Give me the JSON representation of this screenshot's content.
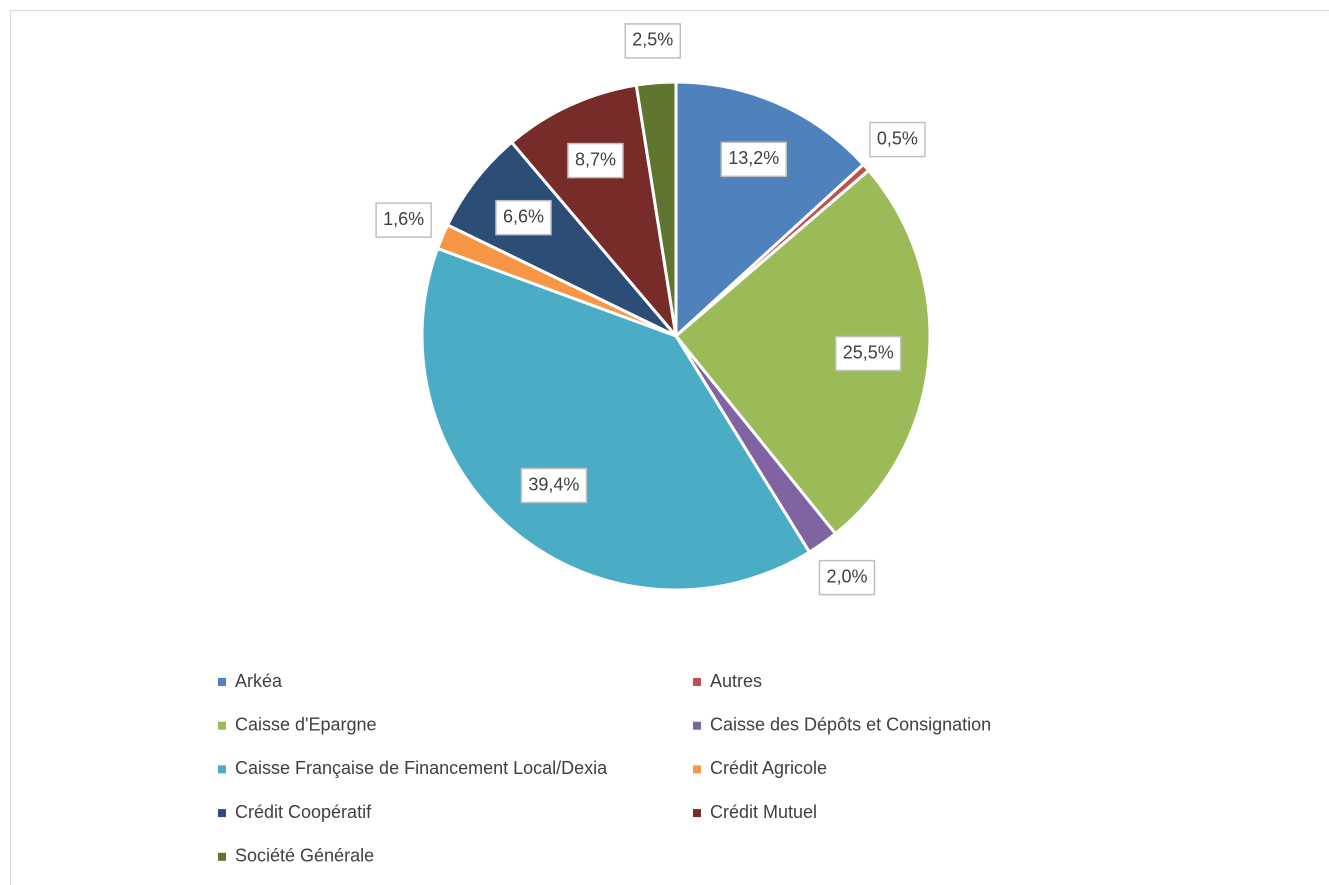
{
  "chart_data": {
    "type": "pie",
    "categories": [
      "Arkéa",
      "Autres",
      "Caisse d'Epargne",
      "Caisse des Dépôts et Consignation",
      "Caisse Française de Financement Local/Dexia",
      "Crédit Agricole",
      "Crédit Coopératif",
      "Crédit Mutuel",
      "Société Générale"
    ],
    "values": [
      13.2,
      0.5,
      25.5,
      2.0,
      39.4,
      1.6,
      6.6,
      8.7,
      2.5
    ],
    "value_labels": [
      "13,2%",
      "0,5%",
      "25,5%",
      "2,0%",
      "39,4%",
      "1,6%",
      "6,6%",
      "8,7%",
      "2,5%"
    ],
    "colors": [
      "#4f81bd",
      "#c0504d",
      "#9bbb59",
      "#8064a2",
      "#4bacc6",
      "#f79646",
      "#2c4d75",
      "#772c2a",
      "#5f7530"
    ],
    "legend": "bottom"
  }
}
